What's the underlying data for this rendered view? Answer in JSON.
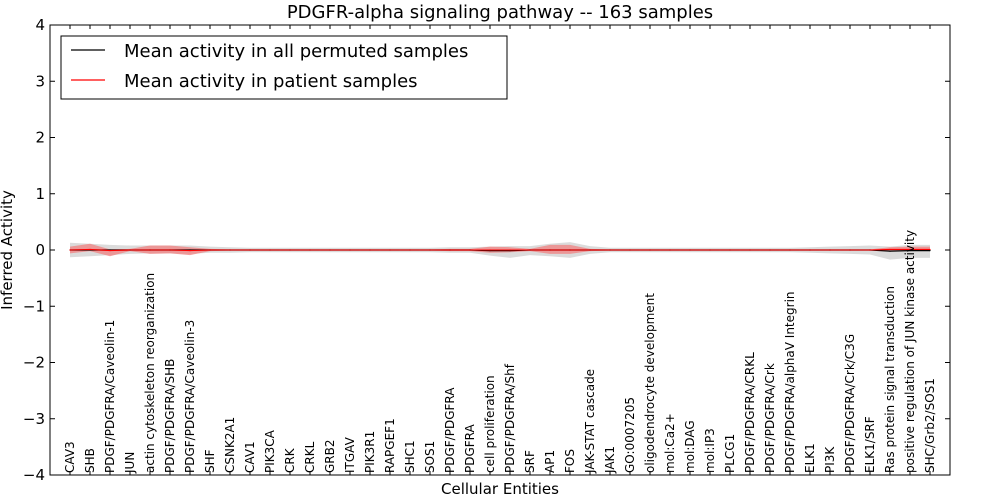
{
  "chart_data": {
    "type": "line",
    "title": "PDGFR-alpha signaling pathway -- 163 samples",
    "xlabel": "Cellular Entities",
    "ylabel": "Inferred Activity",
    "ylim": [
      -4,
      4
    ],
    "yticks": [
      "4",
      "3",
      "2",
      "1",
      "0",
      "−1",
      "−2",
      "−3",
      "−4"
    ],
    "ytick_values": [
      4,
      3,
      2,
      1,
      0,
      -1,
      -2,
      -3,
      -4
    ],
    "legend_position": "top-left",
    "grid": false,
    "categories": [
      "CAV3",
      "SHB",
      "PDGF/PDGFRA/Caveolin-1",
      "JUN",
      "actin cytoskeleton reorganization",
      "PDGF/PDGFRA/SHB",
      "PDGF/PDGFRA/Caveolin-3",
      "SHF",
      "CSNK2A1",
      "CAV1",
      "PIK3CA",
      "CRK",
      "CRKL",
      "GRB2",
      "ITGAV",
      "PIK3R1",
      "RAPGEF1",
      "SHC1",
      "SOS1",
      "PDGF/PDGFRA",
      "PDGFRA",
      "cell proliferation",
      "PDGF/PDGFRA/Shf",
      "SRF",
      "AP1",
      "FOS",
      "JAK-STAT cascade",
      "JAK1",
      "GO:0007205",
      "oligodendrocyte development",
      "mol:Ca2+",
      "mol:DAG",
      "mol:IP3",
      "PLCG1",
      "PDGF/PDGFRA/CRKL",
      "PDGF/PDGFRA/Crk",
      "PDGF/PDGFRA/alphaV Integrin",
      "ELK1",
      "PI3K",
      "PDGF/PDGFRA/Crk/C3G",
      "ELK1/SRF",
      "Ras protein signal transduction",
      "positive regulation of JUN kinase activity",
      "SHC/Grb2/SOS1"
    ],
    "series": [
      {
        "name": "Mean activity in all permuted samples",
        "color": "#000000",
        "values": [
          0,
          0,
          0,
          0,
          0,
          0,
          0,
          0,
          0,
          0,
          0,
          0,
          0,
          0,
          0,
          0,
          0,
          0,
          0,
          0,
          0,
          -0.01,
          -0.01,
          0,
          0,
          0,
          0,
          0,
          0,
          0,
          0,
          0,
          0,
          0,
          0,
          0,
          0,
          0,
          0,
          0,
          0,
          -0.02,
          -0.01,
          -0.01
        ],
        "band_lower": [
          -0.13,
          -0.11,
          -0.09,
          -0.07,
          -0.06,
          -0.06,
          -0.07,
          -0.05,
          -0.05,
          -0.04,
          -0.04,
          -0.04,
          -0.04,
          -0.04,
          -0.04,
          -0.04,
          -0.04,
          -0.04,
          -0.04,
          -0.05,
          -0.05,
          -0.09,
          -0.13,
          -0.09,
          -0.11,
          -0.14,
          -0.07,
          -0.04,
          -0.04,
          -0.04,
          -0.04,
          -0.04,
          -0.04,
          -0.04,
          -0.04,
          -0.04,
          -0.04,
          -0.05,
          -0.06,
          -0.07,
          -0.08,
          -0.15,
          -0.13,
          -0.13
        ],
        "band_upper": [
          0.13,
          0.11,
          0.09,
          0.08,
          0.08,
          0.08,
          0.08,
          0.06,
          0.05,
          0.04,
          0.04,
          0.04,
          0.04,
          0.04,
          0.04,
          0.04,
          0.04,
          0.04,
          0.04,
          0.05,
          0.05,
          0.07,
          0.08,
          0.07,
          0.11,
          0.14,
          0.07,
          0.04,
          0.04,
          0.04,
          0.04,
          0.04,
          0.04,
          0.04,
          0.04,
          0.04,
          0.04,
          0.05,
          0.06,
          0.07,
          0.08,
          0.08,
          0.1,
          0.1
        ],
        "band_color": "#cccccc"
      },
      {
        "name": "Mean activity in patient samples",
        "color": "#ff0000",
        "values": [
          0,
          0.01,
          -0.01,
          0,
          0,
          0,
          -0.01,
          0,
          0,
          0,
          0,
          0,
          0,
          0,
          0,
          0,
          0,
          0,
          0,
          0,
          0,
          0,
          0,
          0,
          0,
          0,
          0,
          0,
          0,
          0,
          0,
          0,
          0,
          0,
          0,
          0,
          0,
          0,
          0,
          0,
          0,
          0.01,
          0.01,
          0.01
        ],
        "band_lower": [
          -0.06,
          -0.03,
          -0.1,
          -0.02,
          -0.07,
          -0.06,
          -0.08,
          -0.02,
          -0.01,
          -0.01,
          -0.01,
          -0.01,
          -0.01,
          -0.01,
          -0.01,
          -0.01,
          -0.01,
          -0.01,
          -0.01,
          -0.02,
          -0.02,
          -0.05,
          -0.04,
          -0.02,
          -0.07,
          -0.07,
          -0.02,
          -0.01,
          -0.01,
          -0.01,
          -0.01,
          -0.01,
          -0.01,
          -0.01,
          -0.01,
          -0.01,
          -0.01,
          -0.01,
          -0.01,
          -0.01,
          -0.01,
          -0.02,
          -0.02,
          -0.02
        ],
        "band_upper": [
          0.06,
          0.1,
          0.02,
          0.02,
          0.08,
          0.08,
          0.06,
          0.02,
          0.01,
          0.01,
          0.01,
          0.01,
          0.01,
          0.01,
          0.01,
          0.01,
          0.01,
          0.01,
          0.01,
          0.02,
          0.02,
          0.06,
          0.05,
          0.02,
          0.09,
          0.09,
          0.02,
          0.01,
          0.01,
          0.01,
          0.01,
          0.01,
          0.01,
          0.01,
          0.01,
          0.01,
          0.01,
          0.01,
          0.01,
          0.01,
          0.01,
          0.04,
          0.05,
          0.05
        ],
        "band_color": "#f08080"
      }
    ]
  }
}
